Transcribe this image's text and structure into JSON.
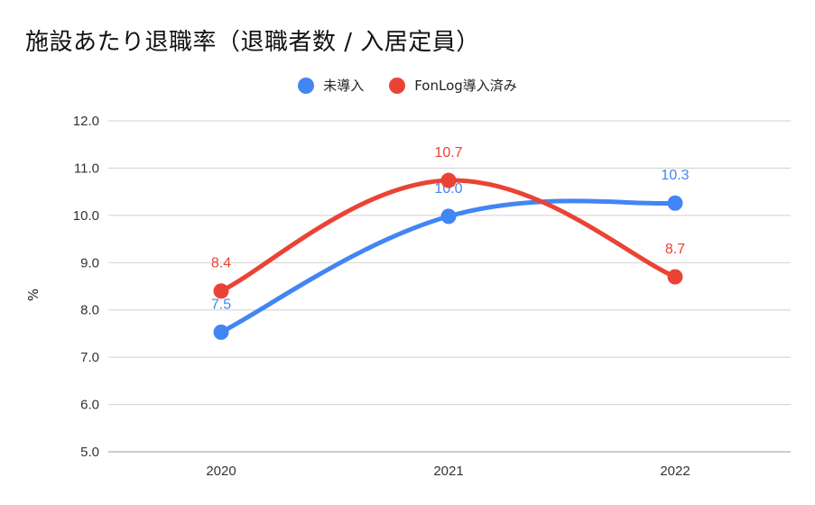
{
  "chart_data": {
    "type": "line",
    "title": "施設あたり退職率（退職者数 / 入居定員）",
    "ylabel": "%",
    "xlabel": "",
    "ylim": [
      5.0,
      12.0
    ],
    "yticks": [
      "5.0",
      "6.0",
      "7.0",
      "8.0",
      "9.0",
      "10.0",
      "11.0",
      "12.0"
    ],
    "categories": [
      "2020",
      "2021",
      "2022"
    ],
    "grid": true,
    "legend_position": "top",
    "series": [
      {
        "name": "未導入",
        "color": "#4285f4",
        "values": [
          7.53,
          9.98,
          10.26
        ],
        "labels": [
          "7.5",
          "10.0",
          "10.3"
        ]
      },
      {
        "name": "FonLog導入済み",
        "color": "#ea4335",
        "values": [
          8.4,
          10.74,
          8.7
        ],
        "labels": [
          "8.4",
          "10.7",
          "8.7"
        ]
      }
    ]
  }
}
